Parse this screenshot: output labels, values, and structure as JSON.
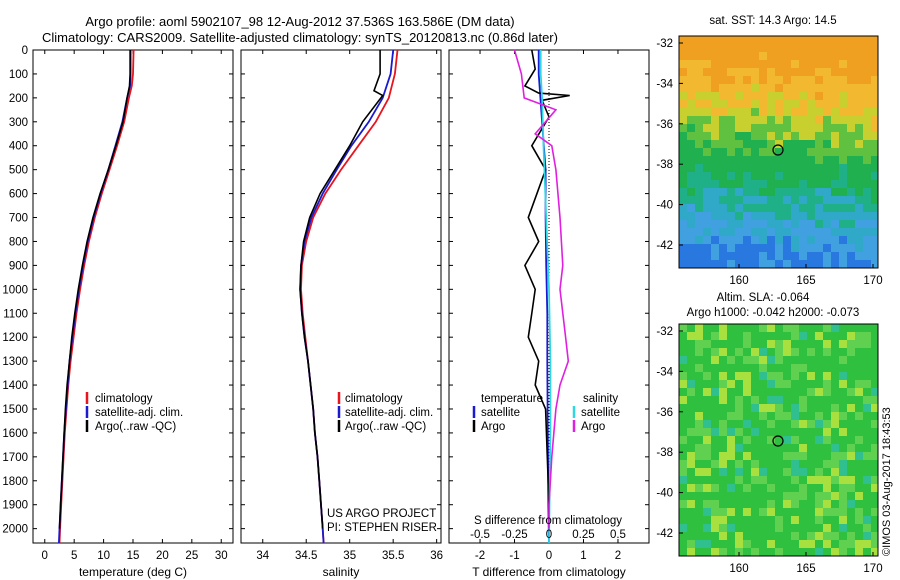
{
  "header": {
    "title_line1": "Argo profile: aoml 5902107_98 12-Aug-2012 37.536S 163.586E (DM data)",
    "title_line2": "Climatology: CARS2009. Satellite-adjusted climatology: synTS_20120813.nc (0.86d later)"
  },
  "colors": {
    "climatology": "#e8141e",
    "satellite": "#1a1ad0",
    "argo": "#000000",
    "salinity_satellite": "#2fd8e0",
    "salinity_argo": "#e020e0"
  },
  "depth_axis": {
    "ticks": [
      0,
      100,
      200,
      300,
      400,
      500,
      600,
      700,
      800,
      900,
      1000,
      1100,
      1200,
      1300,
      1400,
      1500,
      1600,
      1700,
      1800,
      1900,
      2000
    ],
    "range": [
      0,
      2060
    ]
  },
  "temperature_panel": {
    "xlabel": "temperature (deg C)",
    "xticks": [
      0,
      5,
      10,
      15,
      20,
      25,
      30
    ],
    "xrange": [
      -2,
      32
    ],
    "legend": [
      "climatology",
      "satellite-adj. clim.",
      "Argo(..raw -QC)"
    ]
  },
  "salinity_panel": {
    "xlabel": "salinity",
    "xticks": [
      34,
      34.5,
      35,
      35.5,
      36
    ],
    "xtick_labels": [
      "34",
      "34.5",
      "35",
      "35.5",
      "36"
    ],
    "xrange": [
      33.75,
      36.05
    ],
    "legend": [
      "climatology",
      "satellite-adj. clim.",
      "Argo(..raw -QC)"
    ],
    "note_line1": "US ARGO PROJECT",
    "note_line2": "PI: STEPHEN RISER"
  },
  "difference_panel": {
    "xlabel": "T difference from climatology",
    "xticks": [
      -2,
      -1,
      0,
      1,
      2
    ],
    "xtick_labels": [
      "-2",
      "-1",
      "0",
      "1",
      "2"
    ],
    "xrange": [
      -2.9,
      2.9
    ],
    "s_label": "S difference from climatology",
    "s_ticks": [
      -0.5,
      -0.25,
      0,
      0.25,
      0.5
    ],
    "s_tick_labels": [
      "-0.5",
      "-0.25",
      "0",
      "0.25",
      "0.5"
    ],
    "legend_t_title": "temperature",
    "legend_t": [
      "satellite",
      "Argo"
    ],
    "legend_s_title": "salinity",
    "legend_s": [
      "satellite",
      "Argo"
    ]
  },
  "sst_map": {
    "title": "sat. SST: 14.3 Argo: 14.5",
    "lat_ticks": [
      "-32",
      "-34",
      "-36",
      "-38",
      "-40",
      "-42"
    ],
    "lon_ticks": [
      "160",
      "165",
      "170"
    ]
  },
  "sla_map": {
    "title_line1": "Altim. SLA: -0.064",
    "title_line2": "Argo h1000: -0.042 h2000: -0.073",
    "lat_ticks": [
      "-32",
      "-34",
      "-36",
      "-38",
      "-40",
      "-42"
    ],
    "lon_ticks": [
      "160",
      "165",
      "170"
    ]
  },
  "credit": "©IMOS 03-Aug-2017 18:43:53",
  "chart_data": [
    {
      "type": "line",
      "name_key": "temperature_profile",
      "y_is_depth_m": true,
      "series": [
        {
          "key": "climatology",
          "points": [
            [
              15.1,
              0
            ],
            [
              15.0,
              100
            ],
            [
              14.8,
              150
            ],
            [
              14.3,
              200
            ],
            [
              13.5,
              300
            ],
            [
              12.3,
              400
            ],
            [
              11.0,
              500
            ],
            [
              9.7,
              600
            ],
            [
              8.5,
              700
            ],
            [
              7.5,
              800
            ],
            [
              6.7,
              900
            ],
            [
              6.0,
              1000
            ],
            [
              5.4,
              1100
            ],
            [
              4.9,
              1200
            ],
            [
              4.4,
              1300
            ],
            [
              4.0,
              1400
            ],
            [
              3.7,
              1500
            ],
            [
              3.4,
              1600
            ],
            [
              3.2,
              1700
            ],
            [
              3.0,
              1800
            ],
            [
              2.8,
              1900
            ],
            [
              2.6,
              2000
            ],
            [
              2.5,
              2060
            ]
          ]
        },
        {
          "key": "satellite",
          "points": [
            [
              14.6,
              0
            ],
            [
              14.6,
              100
            ],
            [
              14.5,
              150
            ],
            [
              14.0,
              200
            ],
            [
              13.2,
              300
            ],
            [
              12.0,
              400
            ],
            [
              10.8,
              500
            ],
            [
              9.5,
              600
            ],
            [
              8.3,
              700
            ],
            [
              7.3,
              800
            ],
            [
              6.5,
              900
            ],
            [
              5.8,
              1000
            ],
            [
              5.2,
              1100
            ],
            [
              4.7,
              1200
            ],
            [
              4.2,
              1300
            ],
            [
              3.9,
              1400
            ],
            [
              3.6,
              1500
            ],
            [
              3.3,
              1600
            ],
            [
              3.1,
              1700
            ],
            [
              2.9,
              1800
            ],
            [
              2.7,
              1900
            ],
            [
              2.5,
              2000
            ],
            [
              2.4,
              2060
            ]
          ]
        },
        {
          "key": "argo",
          "points": [
            [
              14.5,
              0
            ],
            [
              14.5,
              100
            ],
            [
              14.4,
              150
            ],
            [
              14.0,
              200
            ],
            [
              13.3,
              300
            ],
            [
              12.1,
              400
            ],
            [
              10.8,
              500
            ],
            [
              9.4,
              600
            ],
            [
              8.2,
              700
            ],
            [
              7.2,
              800
            ],
            [
              6.4,
              900
            ],
            [
              5.7,
              1000
            ],
            [
              5.1,
              1100
            ],
            [
              4.6,
              1200
            ],
            [
              4.2,
              1300
            ],
            [
              3.8,
              1400
            ],
            [
              3.5,
              1500
            ],
            [
              3.3,
              1600
            ],
            [
              3.1,
              1700
            ],
            [
              2.9,
              1800
            ],
            [
              2.7,
              1900
            ],
            [
              2.5,
              2000
            ]
          ]
        }
      ]
    },
    {
      "type": "line",
      "name_key": "salinity_profile",
      "y_is_depth_m": true,
      "series": [
        {
          "key": "climatology",
          "points": [
            [
              35.55,
              0
            ],
            [
              35.52,
              100
            ],
            [
              35.45,
              200
            ],
            [
              35.3,
              300
            ],
            [
              35.1,
              400
            ],
            [
              34.9,
              500
            ],
            [
              34.72,
              600
            ],
            [
              34.58,
              700
            ],
            [
              34.5,
              800
            ],
            [
              34.45,
              900
            ],
            [
              34.44,
              1000
            ],
            [
              34.46,
              1100
            ],
            [
              34.49,
              1200
            ],
            [
              34.52,
              1300
            ],
            [
              34.55,
              1400
            ],
            [
              34.58,
              1500
            ],
            [
              34.6,
              1600
            ],
            [
              34.63,
              1700
            ],
            [
              34.65,
              1800
            ],
            [
              34.67,
              1900
            ],
            [
              34.69,
              2000
            ],
            [
              34.7,
              2060
            ]
          ]
        },
        {
          "key": "satellite",
          "points": [
            [
              35.5,
              0
            ],
            [
              35.47,
              100
            ],
            [
              35.38,
              200
            ],
            [
              35.22,
              300
            ],
            [
              35.02,
              400
            ],
            [
              34.85,
              500
            ],
            [
              34.69,
              600
            ],
            [
              34.56,
              700
            ],
            [
              34.48,
              800
            ],
            [
              34.44,
              900
            ],
            [
              34.43,
              1000
            ],
            [
              34.45,
              1100
            ],
            [
              34.48,
              1200
            ],
            [
              34.52,
              1300
            ],
            [
              34.55,
              1400
            ],
            [
              34.58,
              1500
            ],
            [
              34.6,
              1600
            ],
            [
              34.63,
              1700
            ],
            [
              34.65,
              1800
            ],
            [
              34.67,
              1900
            ],
            [
              34.69,
              2000
            ],
            [
              34.7,
              2060
            ]
          ]
        },
        {
          "key": "argo",
          "points": [
            [
              35.35,
              0
            ],
            [
              35.35,
              100
            ],
            [
              35.28,
              170
            ],
            [
              35.38,
              190
            ],
            [
              35.15,
              300
            ],
            [
              35.0,
              400
            ],
            [
              34.83,
              500
            ],
            [
              34.66,
              600
            ],
            [
              34.54,
              700
            ],
            [
              34.47,
              800
            ],
            [
              34.44,
              900
            ],
            [
              34.43,
              1000
            ],
            [
              34.45,
              1100
            ],
            [
              34.48,
              1200
            ],
            [
              34.52,
              1300
            ],
            [
              34.55,
              1400
            ],
            [
              34.58,
              1500
            ],
            [
              34.6,
              1600
            ],
            [
              34.63,
              1700
            ],
            [
              34.65,
              1800
            ],
            [
              34.67,
              1900
            ],
            [
              34.69,
              2000
            ]
          ]
        }
      ]
    },
    {
      "type": "line",
      "name_key": "difference_profile",
      "y_is_depth_m": true,
      "series": [
        {
          "key": "t_satellite",
          "points": [
            [
              -0.3,
              0
            ],
            [
              -0.3,
              100
            ],
            [
              -0.25,
              200
            ],
            [
              -0.2,
              300
            ],
            [
              -0.15,
              400
            ],
            [
              -0.1,
              500
            ],
            [
              -0.1,
              700
            ],
            [
              -0.08,
              900
            ],
            [
              -0.05,
              1100
            ],
            [
              -0.05,
              1300
            ],
            [
              -0.04,
              1500
            ],
            [
              -0.03,
              1700
            ],
            [
              -0.02,
              1900
            ],
            [
              0,
              2060
            ]
          ]
        },
        {
          "key": "t_argo",
          "points": [
            [
              -0.5,
              0
            ],
            [
              -0.4,
              80
            ],
            [
              -0.7,
              150
            ],
            [
              -0.3,
              180
            ],
            [
              0.6,
              190
            ],
            [
              -0.2,
              210
            ],
            [
              0,
              280
            ],
            [
              -0.5,
              400
            ],
            [
              -0.1,
              500
            ],
            [
              -0.6,
              700
            ],
            [
              -0.3,
              800
            ],
            [
              -0.7,
              900
            ],
            [
              -0.4,
              1000
            ],
            [
              -0.5,
              1100
            ],
            [
              -0.6,
              1200
            ],
            [
              -0.3,
              1300
            ],
            [
              -0.4,
              1400
            ],
            [
              -0.1,
              1500
            ],
            [
              -0.05,
              1700
            ],
            [
              0,
              1900
            ],
            [
              0,
              2000
            ]
          ]
        },
        {
          "key": "s_satellite",
          "points": [
            [
              -0.06,
              0
            ],
            [
              -0.06,
              100
            ],
            [
              -0.05,
              200
            ],
            [
              -0.04,
              400
            ],
            [
              -0.02,
              700
            ],
            [
              0,
              1000
            ],
            [
              0.01,
              1300
            ],
            [
              0.01,
              1600
            ],
            [
              0,
              2060
            ]
          ]
        },
        {
          "key": "s_argo",
          "points": [
            [
              -0.25,
              0
            ],
            [
              -0.2,
              100
            ],
            [
              -0.18,
              200
            ],
            [
              0.05,
              250
            ],
            [
              -0.1,
              350
            ],
            [
              0.02,
              400
            ],
            [
              0.05,
              500
            ],
            [
              0.08,
              700
            ],
            [
              0.1,
              900
            ],
            [
              0.08,
              1000
            ],
            [
              0.12,
              1200
            ],
            [
              0.14,
              1300
            ],
            [
              0.08,
              1400
            ],
            [
              0.05,
              1500
            ],
            [
              0.02,
              1700
            ],
            [
              0,
              1900
            ],
            [
              0,
              2000
            ]
          ]
        }
      ]
    }
  ]
}
